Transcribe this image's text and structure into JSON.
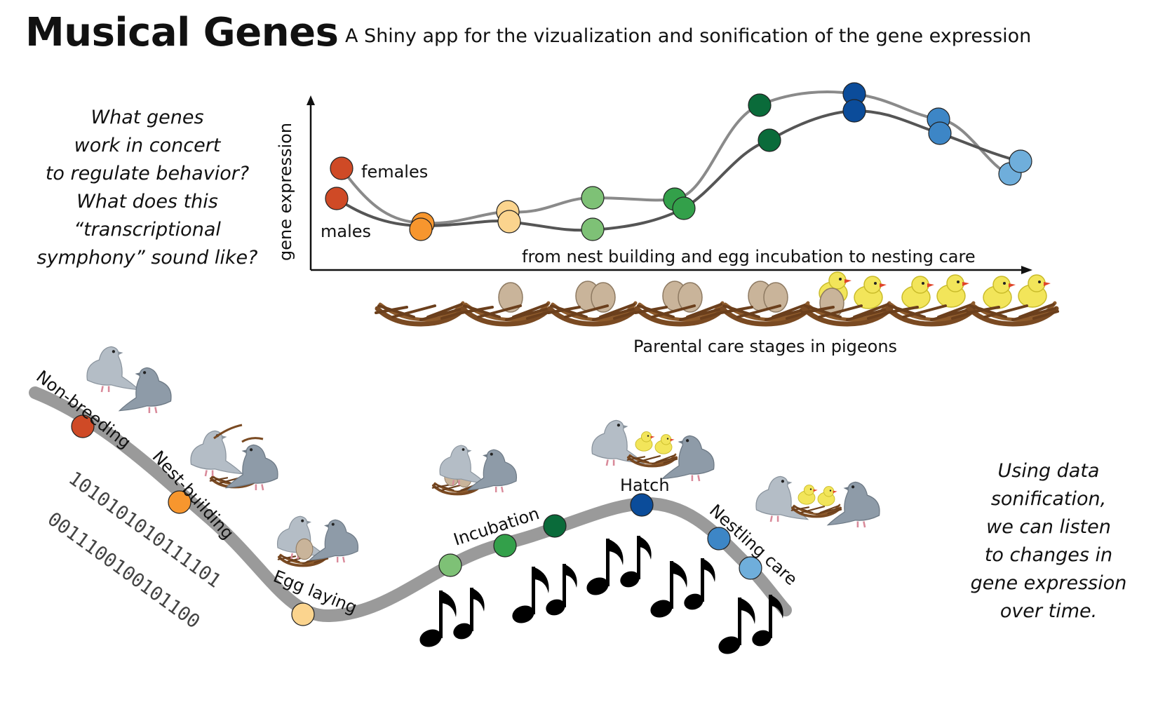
{
  "header": {
    "title": "Musical Genes",
    "subtitle": "A Shiny app for the vizualization and sonification of the gene expression"
  },
  "question_lines": [
    "What genes",
    "work in concert",
    "to regulate behavior?",
    "What does this",
    "“transcriptional",
    "symphony” sound like?"
  ],
  "sonification_lines": [
    "Using data",
    "sonification,",
    "we can listen",
    "to changes in",
    "gene expression",
    "over time."
  ],
  "chart": {
    "ylabel": "gene expression",
    "xlabel": "from nest building and egg incubation to nesting care",
    "females_label": "females",
    "males_label": "males",
    "caption": "Parental care stages in pigeons",
    "stage_colors": [
      "#cf4a26",
      "#f7962e",
      "#fbd48e",
      "#7ec176",
      "#33a04a",
      "#0a6b3a",
      "#0b4c9a",
      "#3d86c6",
      "#6faedb"
    ]
  },
  "timeline": {
    "stage_labels": [
      "Non-breeding",
      "Nest-building",
      "Egg laying",
      "Incubation",
      "Hatch",
      "Nestling care"
    ],
    "binary_1": "1010101010111101",
    "binary_2": "0011100100101100"
  },
  "colors": {
    "nest_brown": "#7a4a22",
    "egg": "#c9b49a",
    "chick": "#f2e55a",
    "pigeon": "#8e9ba8",
    "road": "#9a9a9a"
  }
}
